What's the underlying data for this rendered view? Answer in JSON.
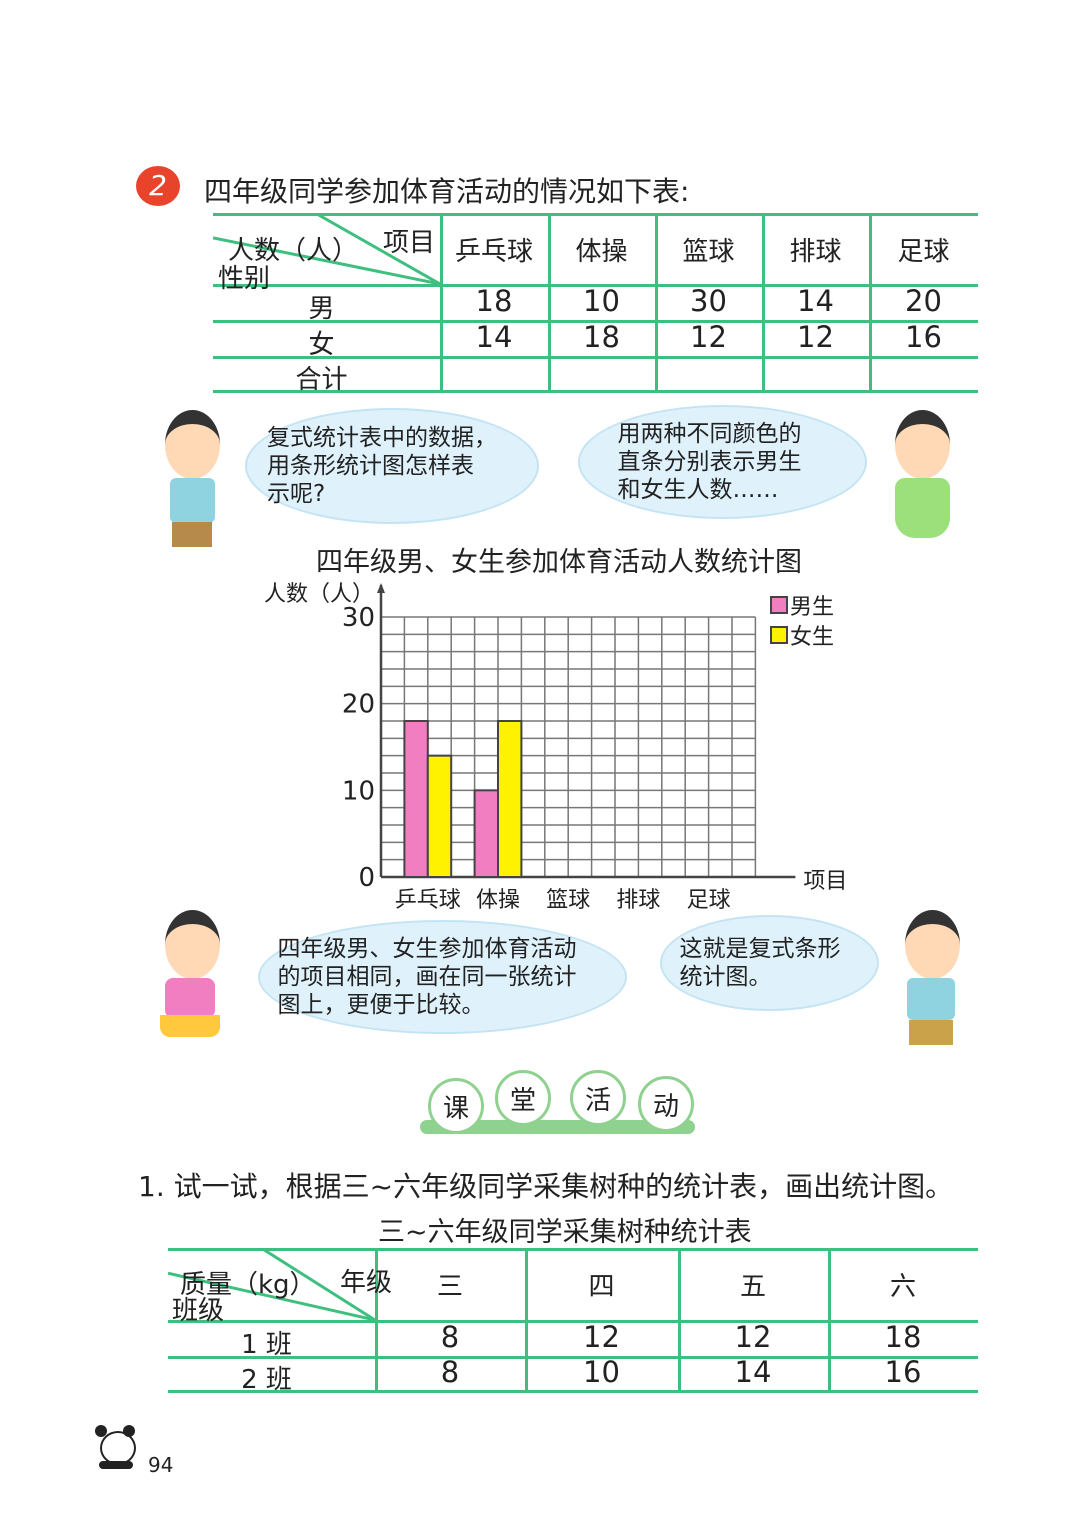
{
  "problem": {
    "number": "2",
    "text": "四年级同学参加体育活动的情况如下表:"
  },
  "table1": {
    "corner": {
      "top": "项目",
      "middle": "人数（人）",
      "bottom": "性别"
    },
    "columns": [
      "乒乓球",
      "体操",
      "篮球",
      "排球",
      "足球"
    ],
    "rows": [
      {
        "label": "男",
        "values": [
          "18",
          "10",
          "30",
          "14",
          "20"
        ]
      },
      {
        "label": "女",
        "values": [
          "14",
          "18",
          "12",
          "12",
          "16"
        ]
      },
      {
        "label": "合计",
        "values": [
          "",
          "",
          "",
          "",
          ""
        ]
      }
    ]
  },
  "bubbles": {
    "boy1": "复式统计表中的数据，\n用条形统计图怎样表\n示呢?",
    "girl1": "用两种不同颜色的\n直条分别表示男生\n和女生人数……",
    "girl2": "四年级男、女生参加体育活动\n的项目相同，画在同一张统计\n图上，更便于比较。",
    "boy2": "这就是复式条形\n统计图。"
  },
  "chart_data": {
    "type": "bar",
    "title": "四年级男、女生参加体育活动人数统计图",
    "ylabel": "人数（人）",
    "xlabel": "项目",
    "categories": [
      "乒乓球",
      "体操",
      "篮球",
      "排球",
      "足球"
    ],
    "series": [
      {
        "name": "男生",
        "color": "#f07ec0",
        "values": [
          18,
          10,
          null,
          null,
          null
        ]
      },
      {
        "name": "女生",
        "color": "#fff200",
        "values": [
          14,
          18,
          null,
          null,
          null
        ]
      }
    ],
    "yticks": [
      "0",
      "10",
      "20",
      "30"
    ],
    "ylim": [
      0,
      30
    ],
    "grid": true,
    "legend": "top-right"
  },
  "activity": {
    "chars": [
      "课",
      "堂",
      "活",
      "动"
    ]
  },
  "exercise": {
    "text": "1. 试一试，根据三~六年级同学采集树种的统计表，画出统计图。",
    "table_title": "三~六年级同学采集树种统计表"
  },
  "table2": {
    "corner": {
      "top": "年级",
      "middle": "质量（kg）",
      "bottom": "班级"
    },
    "columns": [
      "三",
      "四",
      "五",
      "六"
    ],
    "rows": [
      {
        "label": "1 班",
        "values": [
          "8",
          "12",
          "12",
          "18"
        ]
      },
      {
        "label": "2 班",
        "values": [
          "8",
          "10",
          "14",
          "16"
        ]
      }
    ]
  },
  "page_number": "94",
  "colors": {
    "table_line": "#3fbf7f",
    "bubble": "#dff1fb",
    "boy_bar": "#f07ec0",
    "girl_bar": "#fff200"
  }
}
